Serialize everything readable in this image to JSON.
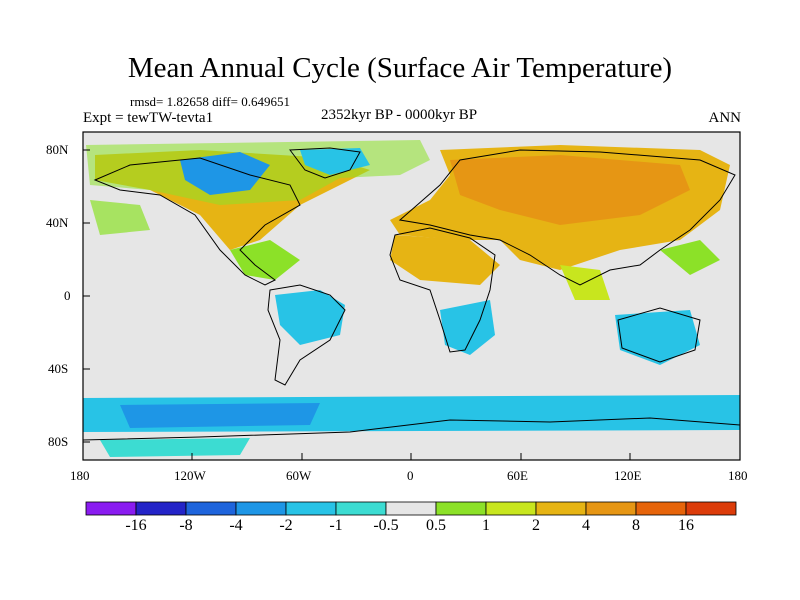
{
  "title": "Mean Annual Cycle (Surface Air Temperature)",
  "stats": "rmsd= 1.82658 diff= 0.649651",
  "experiment": "Expt = tewTW-tevta1",
  "period": "2352kyr BP - 0000kyr BP",
  "season": "ANN",
  "lat_ticks": [
    "80N",
    "40N",
    "0",
    "40S",
    "80S"
  ],
  "lon_ticks": [
    "180",
    "120W",
    "60W",
    "0",
    "60E",
    "120E",
    "180"
  ],
  "map_extent": {
    "lon": [
      -180,
      180
    ],
    "lat": [
      -90,
      90
    ]
  },
  "colorbar": {
    "labels": [
      "-16",
      "-8",
      "-4",
      "-2",
      "-1",
      "-0.5",
      "0.5",
      "1",
      "2",
      "4",
      "8",
      "16"
    ],
    "colors": [
      "#8a1cf0",
      "#2424c8",
      "#1e64dc",
      "#1e96e6",
      "#28c3e6",
      "#3cdcd2",
      "#e6e6e6",
      "#8ce128",
      "#c8e61e",
      "#e6b414",
      "#e69614",
      "#e6640a",
      "#dc3c0a"
    ]
  },
  "palette": {
    "land_outline": "#000000",
    "neutral": "#e6e6e6"
  }
}
